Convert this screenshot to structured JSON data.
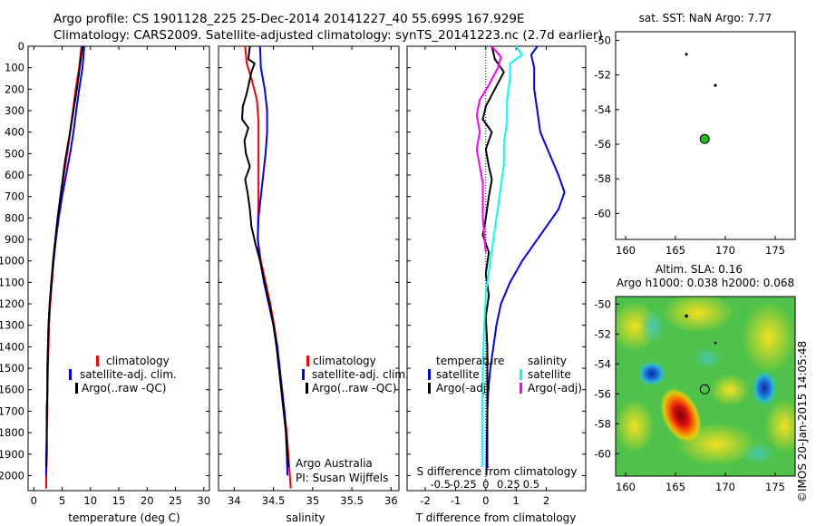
{
  "header": {
    "line1": "Argo profile: CS 1901128_225 25-Dec-2014 20141227_40 55.699S 167.929E",
    "line2": "Climatology: CARS2009. Satellite-adjusted climatology: synTS_20141223.nc (2.7d earlier)"
  },
  "colors": {
    "climatology": "#ff0000",
    "satellite": "#0000ff",
    "argo": "#000000",
    "salinity_satellite": "#00ffff",
    "salinity_argo": "#ff00ff",
    "map_marker": "#22bb22"
  },
  "chart_data": [
    {
      "id": "temperature",
      "type": "line",
      "xlabel": "temperature (deg C)",
      "ylabel": "",
      "xlim": [
        -1,
        31
      ],
      "ylim": [
        2070,
        0
      ],
      "xticks": [
        0,
        5,
        10,
        15,
        20,
        25,
        30
      ],
      "yticks": [
        0,
        100,
        200,
        300,
        400,
        500,
        600,
        700,
        800,
        900,
        1000,
        1100,
        1200,
        1300,
        1400,
        1500,
        1600,
        1700,
        1800,
        1900,
        2000
      ],
      "legend": [
        "climatology",
        "satellite-adj. clim.",
        "Argo(..raw -QC)"
      ],
      "series": [
        {
          "name": "climatology",
          "color": "#ff0000",
          "points": [
            [
              8.4,
              0
            ],
            [
              8.0,
              100
            ],
            [
              7.4,
              200
            ],
            [
              6.9,
              300
            ],
            [
              6.4,
              400
            ],
            [
              5.9,
              500
            ],
            [
              5.3,
              600
            ],
            [
              4.8,
              700
            ],
            [
              4.3,
              800
            ],
            [
              3.9,
              900
            ],
            [
              3.5,
              1000
            ],
            [
              3.2,
              1100
            ],
            [
              2.9,
              1200
            ],
            [
              2.7,
              1300
            ],
            [
              2.6,
              1400
            ],
            [
              2.5,
              1500
            ],
            [
              2.4,
              1600
            ],
            [
              2.4,
              1700
            ],
            [
              2.3,
              1800
            ],
            [
              2.3,
              1900
            ],
            [
              2.2,
              2000
            ],
            [
              2.2,
              2060
            ]
          ]
        },
        {
          "name": "satellite-adj. clim.",
          "color": "#0000ff",
          "points": [
            [
              8.9,
              0
            ],
            [
              8.6,
              100
            ],
            [
              8.0,
              200
            ],
            [
              7.5,
              300
            ],
            [
              7.0,
              400
            ],
            [
              6.4,
              500
            ],
            [
              5.7,
              600
            ],
            [
              5.0,
              700
            ],
            [
              4.4,
              800
            ],
            [
              3.9,
              900
            ],
            [
              3.5,
              1000
            ],
            [
              3.1,
              1100
            ],
            [
              2.8,
              1200
            ],
            [
              2.6,
              1300
            ],
            [
              2.5,
              1400
            ],
            [
              2.4,
              1500
            ],
            [
              2.4,
              1600
            ],
            [
              2.3,
              1700
            ],
            [
              2.3,
              1800
            ],
            [
              2.2,
              1900
            ],
            [
              2.2,
              2000
            ]
          ]
        },
        {
          "name": "Argo(..raw -QC)",
          "color": "#000000",
          "points": [
            [
              8.6,
              0
            ],
            [
              8.3,
              60
            ],
            [
              8.0,
              120
            ],
            [
              7.6,
              200
            ],
            [
              7.0,
              300
            ],
            [
              6.4,
              400
            ],
            [
              6.0,
              460
            ],
            [
              5.5,
              540
            ],
            [
              5.0,
              640
            ],
            [
              4.6,
              720
            ],
            [
              4.2,
              800
            ],
            [
              3.8,
              900
            ],
            [
              3.4,
              1000
            ],
            [
              3.1,
              1100
            ],
            [
              2.8,
              1200
            ],
            [
              2.6,
              1300
            ],
            [
              2.5,
              1400
            ],
            [
              2.4,
              1500
            ],
            [
              2.4,
              1600
            ],
            [
              2.3,
              1700
            ],
            [
              2.3,
              1800
            ],
            [
              2.3,
              1900
            ],
            [
              2.2,
              1960
            ]
          ]
        }
      ],
      "annotations": []
    },
    {
      "id": "salinity",
      "type": "line",
      "xlabel": "salinity",
      "ylabel": "",
      "xlim": [
        33.8,
        36.1
      ],
      "ylim": [
        2070,
        0
      ],
      "xticks": [
        34,
        34.5,
        35,
        35.5,
        36
      ],
      "legend": [
        "climatology",
        "satellite-adj. clim.",
        "Argo(..raw -QC)"
      ],
      "series": [
        {
          "name": "climatology",
          "color": "#ff0000",
          "points": [
            [
              34.14,
              0
            ],
            [
              34.16,
              80
            ],
            [
              34.22,
              150
            ],
            [
              34.29,
              250
            ],
            [
              34.31,
              350
            ],
            [
              34.31,
              500
            ],
            [
              34.31,
              700
            ],
            [
              34.3,
              900
            ],
            [
              34.34,
              1000
            ],
            [
              34.4,
              1100
            ],
            [
              34.46,
              1200
            ],
            [
              34.51,
              1300
            ],
            [
              34.55,
              1400
            ],
            [
              34.58,
              1500
            ],
            [
              34.61,
              1600
            ],
            [
              34.64,
              1700
            ],
            [
              34.67,
              1800
            ],
            [
              34.69,
              1900
            ],
            [
              34.71,
              2000
            ],
            [
              34.72,
              2060
            ]
          ]
        },
        {
          "name": "satellite-adj. clim.",
          "color": "#0000ff",
          "points": [
            [
              34.33,
              0
            ],
            [
              34.34,
              100
            ],
            [
              34.39,
              200
            ],
            [
              34.42,
              300
            ],
            [
              34.42,
              400
            ],
            [
              34.4,
              500
            ],
            [
              34.37,
              600
            ],
            [
              34.34,
              700
            ],
            [
              34.31,
              800
            ],
            [
              34.3,
              900
            ],
            [
              34.33,
              1000
            ],
            [
              34.38,
              1100
            ],
            [
              34.44,
              1200
            ],
            [
              34.5,
              1300
            ],
            [
              34.55,
              1400
            ],
            [
              34.58,
              1500
            ],
            [
              34.61,
              1600
            ],
            [
              34.64,
              1700
            ],
            [
              34.66,
              1800
            ],
            [
              34.67,
              1900
            ],
            [
              34.68,
              2000
            ]
          ]
        },
        {
          "name": "Argo(..raw -QC)",
          "color": "#000000",
          "points": [
            [
              34.2,
              0
            ],
            [
              34.18,
              60
            ],
            [
              34.26,
              80
            ],
            [
              34.22,
              120
            ],
            [
              34.16,
              220
            ],
            [
              34.11,
              280
            ],
            [
              34.1,
              340
            ],
            [
              34.18,
              380
            ],
            [
              34.13,
              440
            ],
            [
              34.15,
              500
            ],
            [
              34.2,
              560
            ],
            [
              34.14,
              620
            ],
            [
              34.17,
              680
            ],
            [
              34.2,
              760
            ],
            [
              34.22,
              840
            ],
            [
              34.27,
              920
            ],
            [
              34.33,
              1000
            ],
            [
              34.39,
              1100
            ],
            [
              34.45,
              1200
            ],
            [
              34.5,
              1300
            ],
            [
              34.54,
              1400
            ],
            [
              34.57,
              1500
            ],
            [
              34.6,
              1600
            ],
            [
              34.63,
              1700
            ],
            [
              34.66,
              1800
            ],
            [
              34.68,
              1900
            ],
            [
              34.69,
              1960
            ]
          ]
        }
      ],
      "annotations": [
        "Argo Australia",
        "PI: Susan Wijffels"
      ]
    },
    {
      "id": "difference",
      "type": "line",
      "xlabel": "T difference from climatology",
      "top_axis_label": "S difference from climatology",
      "xlim": [
        -2.6,
        3.3
      ],
      "ylim": [
        2070,
        0
      ],
      "xticks": [
        -2,
        -1,
        0,
        1,
        2
      ],
      "top_tick_labels": [
        "-0.5",
        "-0.25",
        "0",
        "0.25",
        "0.5"
      ],
      "legend": {
        "temperature_title": "temperature",
        "salinity_title": "salinity",
        "temperature_items": [
          "satellite",
          "Argo(-adj)"
        ],
        "salinity_items": [
          "satellite",
          "Argo(-adj)"
        ]
      },
      "series": [
        {
          "name": "temperature satellite",
          "color": "#0000ff",
          "points": [
            [
              1.7,
              0
            ],
            [
              1.5,
              40
            ],
            [
              1.6,
              100
            ],
            [
              1.6,
              200
            ],
            [
              1.7,
              300
            ],
            [
              1.8,
              400
            ],
            [
              2.1,
              500
            ],
            [
              2.4,
              600
            ],
            [
              2.6,
              680
            ],
            [
              2.4,
              760
            ],
            [
              2.0,
              840
            ],
            [
              1.6,
              920
            ],
            [
              1.2,
              1000
            ],
            [
              0.8,
              1100
            ],
            [
              0.5,
              1200
            ],
            [
              0.35,
              1300
            ],
            [
              0.25,
              1400
            ],
            [
              0.15,
              1500
            ],
            [
              0.08,
              1600
            ],
            [
              0.05,
              1700
            ],
            [
              0.04,
              1800
            ],
            [
              0.03,
              1900
            ],
            [
              0.02,
              2000
            ]
          ]
        },
        {
          "name": "temperature Argo(-adj)",
          "color": "#000000",
          "points": [
            [
              0.2,
              0
            ],
            [
              0.3,
              60
            ],
            [
              0.6,
              120
            ],
            [
              0.3,
              200
            ],
            [
              0.0,
              280
            ],
            [
              -0.1,
              340
            ],
            [
              0.2,
              400
            ],
            [
              0.0,
              480
            ],
            [
              0.1,
              560
            ],
            [
              0.2,
              620
            ],
            [
              0.1,
              700
            ],
            [
              0.0,
              800
            ],
            [
              -0.1,
              880
            ],
            [
              0.1,
              960
            ],
            [
              0.0,
              1060
            ],
            [
              0.1,
              1160
            ],
            [
              0.0,
              1260
            ],
            [
              0.05,
              1400
            ],
            [
              0.05,
              1600
            ],
            [
              0.05,
              1800
            ],
            [
              0.05,
              1960
            ]
          ]
        },
        {
          "name": "salinity satellite",
          "color": "#00ffff",
          "points": [
            [
              1.0,
              0
            ],
            [
              1.2,
              40
            ],
            [
              0.8,
              80
            ],
            [
              0.8,
              150
            ],
            [
              0.7,
              250
            ],
            [
              0.7,
              350
            ],
            [
              0.6,
              450
            ],
            [
              0.6,
              550
            ],
            [
              0.5,
              650
            ],
            [
              0.4,
              750
            ],
            [
              0.3,
              850
            ],
            [
              0.2,
              950
            ],
            [
              0.1,
              1050
            ],
            [
              0.0,
              1150
            ],
            [
              -0.05,
              1300
            ],
            [
              -0.1,
              1500
            ],
            [
              -0.12,
              1700
            ],
            [
              -0.12,
              1900
            ],
            [
              -0.12,
              1960
            ]
          ]
        },
        {
          "name": "salinity Argo(-adj)",
          "color": "#ff00ff",
          "points": [
            [
              0.2,
              0
            ],
            [
              0.5,
              50
            ],
            [
              0.4,
              100
            ],
            [
              0.1,
              180
            ],
            [
              -0.2,
              250
            ],
            [
              -0.3,
              320
            ],
            [
              -0.2,
              400
            ],
            [
              -0.3,
              480
            ],
            [
              -0.2,
              560
            ],
            [
              -0.1,
              640
            ],
            [
              -0.1,
              720
            ],
            [
              -0.1,
              800
            ],
            [
              -0.05,
              880
            ],
            [
              0.0,
              960
            ]
          ]
        }
      ],
      "annotations": []
    },
    {
      "id": "sst_map",
      "type": "scatter",
      "title": "sat. SST: NaN Argo: 7.77",
      "xlim": [
        159,
        177
      ],
      "ylim": [
        -61.5,
        -49.5
      ],
      "xticks": [
        160,
        165,
        170,
        175
      ],
      "yticks": [
        -50,
        -52,
        -54,
        -56,
        -58,
        -60
      ],
      "points": [
        {
          "lon": 167.929,
          "lat": -55.699,
          "role": "current profile"
        },
        {
          "lon": 169.0,
          "lat": -52.6,
          "role": "island"
        },
        {
          "lon": 166.1,
          "lat": -50.8,
          "role": "island"
        }
      ]
    },
    {
      "id": "sla_map",
      "type": "heatmap",
      "title_line1": "Altim. SLA: 0.16",
      "title_line2": "Argo h1000: 0.038 h2000: 0.068",
      "xlim": [
        159,
        177
      ],
      "ylim": [
        -61.5,
        -49.5
      ],
      "xticks": [
        160,
        165,
        170,
        175
      ],
      "yticks": [
        -50,
        -52,
        -54,
        -56,
        -58,
        -60
      ],
      "features": [
        {
          "lon": 165.2,
          "lat": -56.4,
          "kind": "high"
        },
        {
          "lon": 164.8,
          "lat": -57.0,
          "kind": "high"
        },
        {
          "lon": 162.3,
          "lat": -54.8,
          "kind": "low"
        },
        {
          "lon": 173.7,
          "lat": -55.0,
          "kind": "low"
        }
      ],
      "marker": {
        "lon": 167.929,
        "lat": -55.699
      }
    }
  ],
  "credit": "©IMOS 20-Jan-2015 14:05:48"
}
